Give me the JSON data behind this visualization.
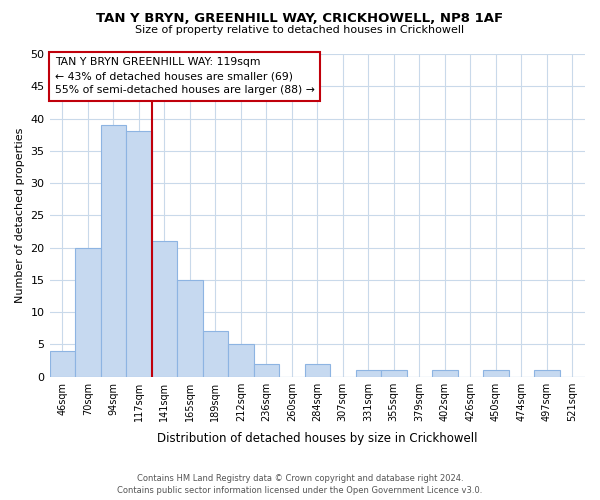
{
  "title": "TAN Y BRYN, GREENHILL WAY, CRICKHOWELL, NP8 1AF",
  "subtitle": "Size of property relative to detached houses in Crickhowell",
  "xlabel": "Distribution of detached houses by size in Crickhowell",
  "ylabel": "Number of detached properties",
  "bar_labels": [
    "46sqm",
    "70sqm",
    "94sqm",
    "117sqm",
    "141sqm",
    "165sqm",
    "189sqm",
    "212sqm",
    "236sqm",
    "260sqm",
    "284sqm",
    "307sqm",
    "331sqm",
    "355sqm",
    "379sqm",
    "402sqm",
    "426sqm",
    "450sqm",
    "474sqm",
    "497sqm",
    "521sqm"
  ],
  "bar_values": [
    4,
    20,
    39,
    38,
    21,
    15,
    7,
    5,
    2,
    0,
    2,
    0,
    1,
    1,
    0,
    1,
    0,
    1,
    0,
    1,
    0
  ],
  "bar_color": "#c6d9f0",
  "bar_edge_color": "#8db4e2",
  "vline_x": 3.5,
  "vline_color": "#c0000b",
  "annotation_title": "TAN Y BRYN GREENHILL WAY: 119sqm",
  "annotation_line1": "← 43% of detached houses are smaller (69)",
  "annotation_line2": "55% of semi-detached houses are larger (88) →",
  "annotation_box_color": "#ffffff",
  "annotation_box_edge": "#c0000b",
  "ylim": [
    0,
    50
  ],
  "yticks": [
    0,
    5,
    10,
    15,
    20,
    25,
    30,
    35,
    40,
    45,
    50
  ],
  "footer_line1": "Contains HM Land Registry data © Crown copyright and database right 2024.",
  "footer_line2": "Contains public sector information licensed under the Open Government Licence v3.0.",
  "background_color": "#ffffff",
  "grid_color": "#c9d9ea"
}
